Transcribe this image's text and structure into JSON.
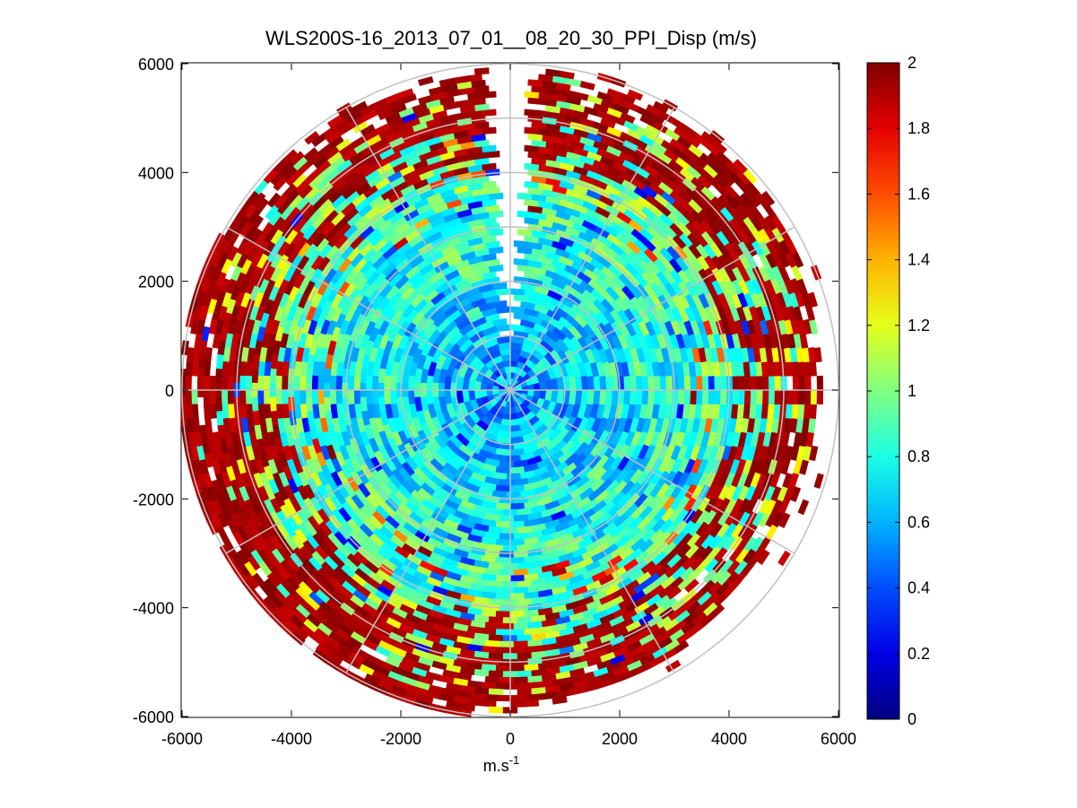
{
  "chart_data": {
    "type": "heatmap",
    "subtype": "polar-ppi",
    "title": "WLS200S-16_2013_07_01__08_20_30_PPI_Disp (m/s)",
    "xlabel_main": "m.s",
    "xlabel_sup": "-1",
    "ylabel": "",
    "xlim": [
      -6000,
      6000
    ],
    "ylim": [
      -6000,
      6000
    ],
    "x_ticks": [
      -6000,
      -4000,
      -2000,
      0,
      2000,
      4000,
      6000
    ],
    "y_ticks": [
      -6000,
      -4000,
      -2000,
      0,
      2000,
      4000,
      6000
    ],
    "x_tick_labels": [
      "-6000",
      "-4000",
      "-2000",
      "0",
      "2000",
      "4000",
      "6000"
    ],
    "y_tick_labels": [
      "-6000",
      "-4000",
      "-2000",
      "0",
      "2000",
      "4000",
      "6000"
    ],
    "colorbar": {
      "min": 0,
      "max": 2,
      "colormap": "jet",
      "tick_labels": [
        "0",
        "0.2",
        "0.4",
        "0.6",
        "0.8",
        "1",
        "1.2",
        "1.4",
        "1.6",
        "1.8",
        "2"
      ]
    },
    "grid": {
      "range_ring_spacing": 1000,
      "ring_max": 6000,
      "spoke_angle_step_deg": 30
    },
    "scan": {
      "max_range": 5500,
      "gap_start_deg": 86,
      "gap_end_deg": 94
    }
  },
  "colors": {
    "background": "#ffffff",
    "axes_grid": "#c0c0c0",
    "text": "#000000"
  }
}
